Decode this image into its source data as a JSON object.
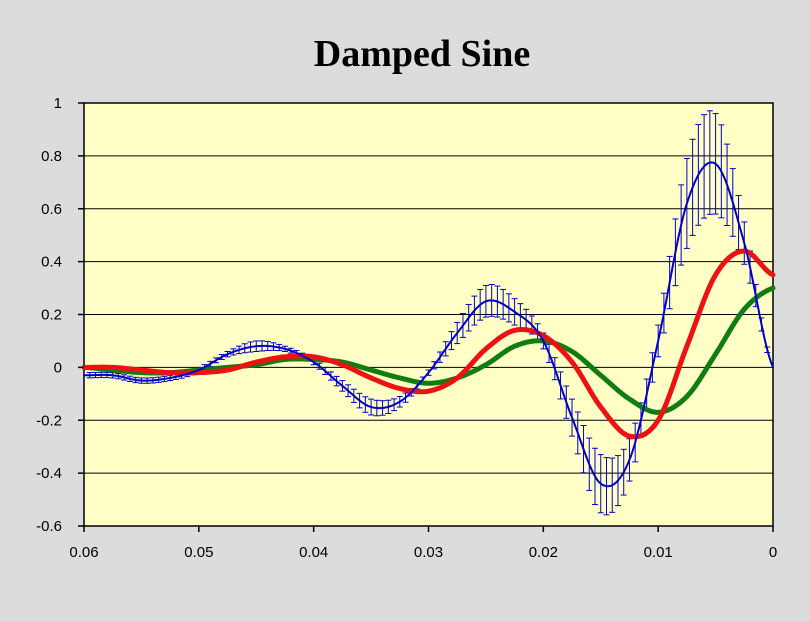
{
  "chart_data": {
    "type": "line",
    "title": "Damped Sine",
    "xlabel": "",
    "ylabel": "",
    "xlim": [
      0.06,
      0
    ],
    "ylim": [
      -0.6,
      1
    ],
    "x_ticks": [
      "0.06",
      "0.05",
      "0.04",
      "0.03",
      "0.02",
      "0.01",
      "0"
    ],
    "y_ticks": [
      "1",
      "0.8",
      "0.6",
      "0.4",
      "0.2",
      "0",
      "-0.2",
      "-0.4",
      "-0.6"
    ],
    "grid": "horizontal",
    "legend": "none",
    "plot_background": "#ffffc6",
    "series": [
      {
        "color": "#0000c8",
        "error_bars": true,
        "x": [
          0,
          0.0025,
          0.005,
          0.0075,
          0.01,
          0.0125,
          0.015,
          0.0175,
          0.02,
          0.0225,
          0.025,
          0.0275,
          0.03,
          0.0325,
          0.035,
          0.0375,
          0.04,
          0.0425,
          0.045,
          0.0475,
          0.05,
          0.0525,
          0.055,
          0.0575,
          0.06
        ],
        "y": [
          0.0,
          0.47,
          0.77,
          0.62,
          0.1,
          -0.35,
          -0.44,
          -0.19,
          0.1,
          0.21,
          0.25,
          0.13,
          -0.02,
          -0.13,
          -0.15,
          -0.07,
          0.02,
          0.07,
          0.08,
          0.05,
          -0.01,
          -0.04,
          -0.05,
          -0.03,
          -0.03
        ],
        "err": [
          0.0,
          0.08,
          0.19,
          0.17,
          0.06,
          0.08,
          0.11,
          0.07,
          0.03,
          0.05,
          0.06,
          0.04,
          0.01,
          0.02,
          0.03,
          0.02,
          0.01,
          0.01,
          0.02,
          0.01,
          0.01,
          0.01,
          0.01,
          0.01,
          0.01
        ]
      },
      {
        "color": "#ee1111",
        "error_bars": false,
        "x": [
          0,
          0.0025,
          0.005,
          0.0075,
          0.01,
          0.0125,
          0.015,
          0.0175,
          0.02,
          0.0225,
          0.025,
          0.0275,
          0.03,
          0.0325,
          0.035,
          0.0375,
          0.04,
          0.0425,
          0.045,
          0.0475,
          0.05,
          0.0525,
          0.055,
          0.0575,
          0.06
        ],
        "y": [
          0.35,
          0.44,
          0.35,
          0.08,
          -0.2,
          -0.26,
          -0.15,
          0.02,
          0.12,
          0.14,
          0.07,
          -0.04,
          -0.09,
          -0.08,
          -0.04,
          0.01,
          0.04,
          0.04,
          0.02,
          -0.01,
          -0.02,
          -0.02,
          -0.01,
          0.0,
          0.0
        ]
      },
      {
        "color": "#0f7d0f",
        "error_bars": false,
        "x": [
          0,
          0.0025,
          0.005,
          0.0075,
          0.01,
          0.0125,
          0.015,
          0.0175,
          0.02,
          0.0225,
          0.025,
          0.0275,
          0.03,
          0.0325,
          0.035,
          0.0375,
          0.04,
          0.0425,
          0.045,
          0.0475,
          0.05,
          0.0525,
          0.055,
          0.0575,
          0.06
        ],
        "y": [
          0.3,
          0.22,
          0.05,
          -0.11,
          -0.17,
          -0.12,
          -0.03,
          0.06,
          0.1,
          0.08,
          0.01,
          -0.04,
          -0.06,
          -0.04,
          -0.01,
          0.02,
          0.03,
          0.03,
          0.01,
          0.0,
          -0.01,
          -0.02,
          -0.02,
          -0.01,
          0.0
        ]
      }
    ]
  }
}
